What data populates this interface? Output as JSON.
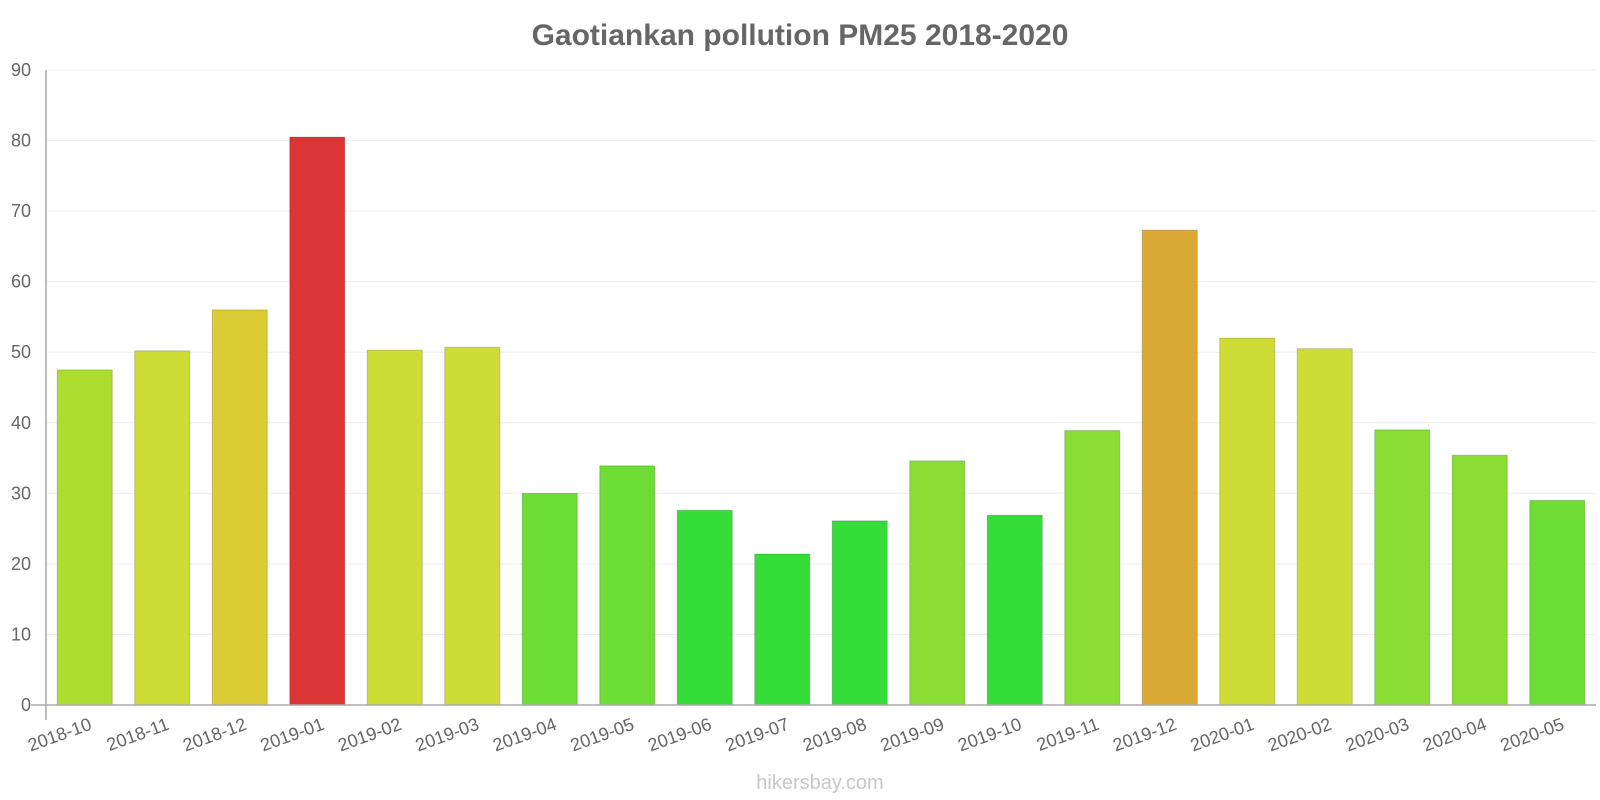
{
  "chart_data": {
    "type": "bar",
    "title": "Gaotiankan pollution PM25 2018-2020",
    "xlabel": "",
    "ylabel": "",
    "ylim": [
      0,
      90
    ],
    "yticks": [
      0,
      10,
      20,
      30,
      40,
      50,
      60,
      70,
      80,
      90
    ],
    "grid": true,
    "legend": "none",
    "categories": [
      "2018-10",
      "2018-11",
      "2018-12",
      "2019-01",
      "2019-02",
      "2019-03",
      "2019-04",
      "2019-05",
      "2019-06",
      "2019-07",
      "2019-08",
      "2019-09",
      "2019-10",
      "2019-11",
      "2019-12",
      "2020-01",
      "2020-02",
      "2020-03",
      "2020-04",
      "2020-05"
    ],
    "values": [
      47.5,
      50.2,
      56,
      80.5,
      50.3,
      50.7,
      30,
      33.9,
      27.6,
      21.4,
      26.1,
      34.6,
      26.9,
      38.9,
      67.3,
      52,
      50.5,
      39,
      35.4,
      29
    ],
    "colors": [
      "#addd31",
      "#cedd35",
      "#dbcb35",
      "#db3535",
      "#cedd35",
      "#cedd35",
      "#6ddd35",
      "#6ddd35",
      "#35dd38",
      "#35dd38",
      "#35dd38",
      "#89dd35",
      "#35dd38",
      "#89dd35",
      "#dba935",
      "#cedd35",
      "#cedd35",
      "#89dd35",
      "#89dd35",
      "#6ddd35"
    ],
    "watermark": "hikersbay.com"
  }
}
